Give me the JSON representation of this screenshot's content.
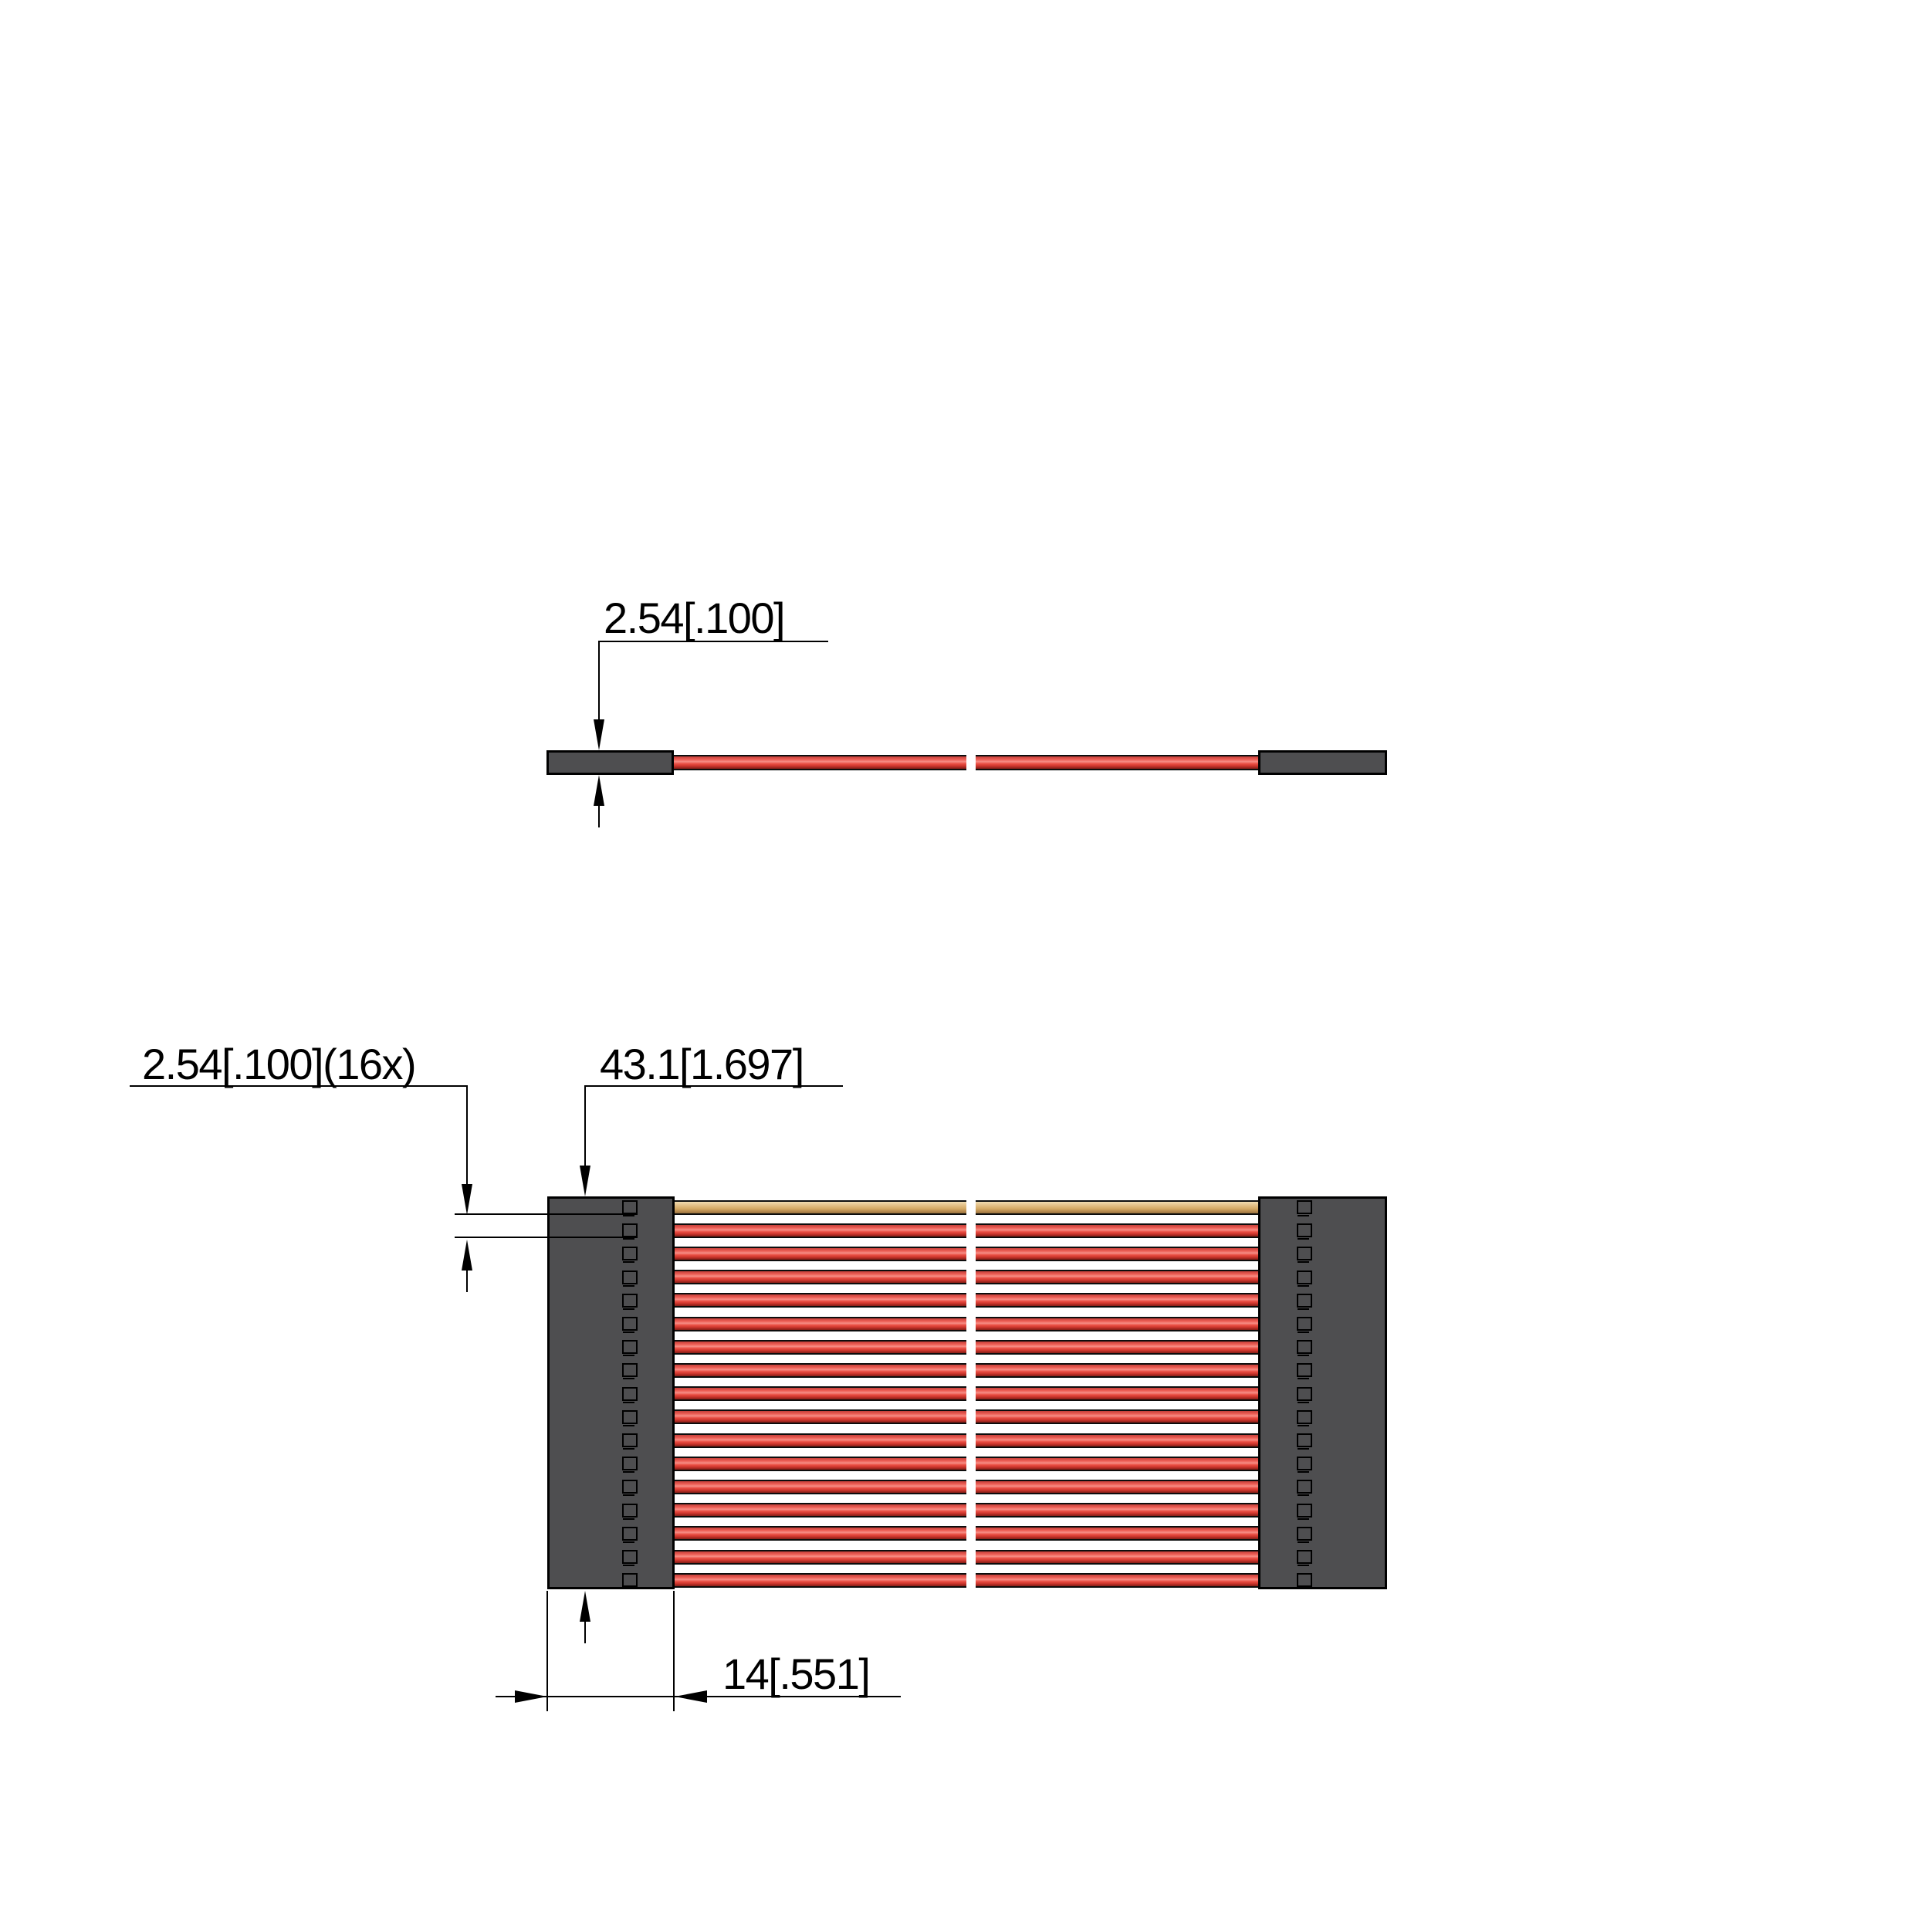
{
  "drawing": {
    "edge_view": {
      "thickness_label": "2.54[.100]"
    },
    "front_view": {
      "pitch_label": "2.54[.100](16x)",
      "length_label": "43.1[1.697]",
      "connector_width_label": "14[.551]"
    },
    "wires": {
      "count": 17,
      "tan_wire_index": 0,
      "red_wire_count": 16,
      "pin_windows_per_connector": 17
    },
    "colors": {
      "connector": "#4e4e50",
      "outline": "#000000",
      "red_main": "#ea4d42",
      "red_highlight": "#f68e86",
      "red_dark": "#8e211a",
      "tan_main": "#d4a964",
      "tan_light": "#f0dcb2",
      "tan_dark": "#96703c"
    }
  }
}
